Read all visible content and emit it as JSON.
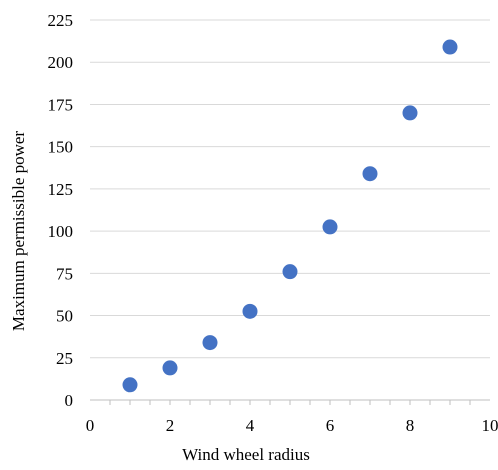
{
  "chart_data": {
    "type": "scatter",
    "title": "",
    "xlabel": "Wind wheel radius",
    "ylabel": "Maximum permissible power",
    "xlim": [
      0,
      10
    ],
    "ylim": [
      0,
      225
    ],
    "x_ticks": [
      "0",
      "2",
      "4",
      "6",
      "8",
      "10"
    ],
    "y_ticks": [
      "0",
      "25",
      "50",
      "75",
      "100",
      "125",
      "150",
      "175",
      "200",
      "225"
    ],
    "grid": "horizontal",
    "legend": "none",
    "marker_color": "#4472C4",
    "series": [
      {
        "x": [
          1,
          2,
          3,
          4,
          5,
          6,
          7,
          8,
          9
        ],
        "y": [
          9,
          19,
          34,
          52.5,
          76,
          102.5,
          134,
          170,
          209
        ]
      }
    ]
  }
}
